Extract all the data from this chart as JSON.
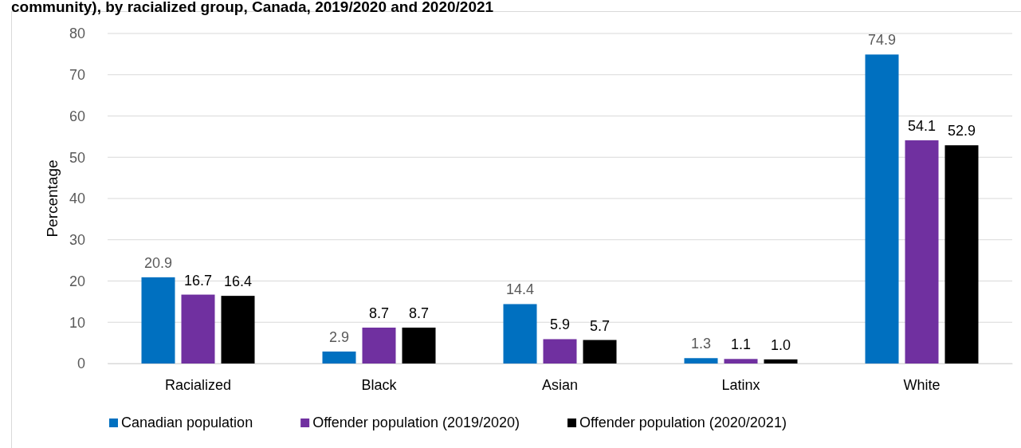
{
  "chart_data": {
    "type": "bar",
    "title": "community), by racialized group, Canada, 2019/2020 and 2020/2021",
    "ylabel": "Percentage",
    "categories": [
      "Racialized",
      "Black",
      "Asian",
      "Latinx",
      "White"
    ],
    "series": [
      {
        "name": "Canadian population",
        "color": "#0070c0",
        "values": [
          20.9,
          2.9,
          14.4,
          1.3,
          74.9
        ],
        "value_labels": [
          "20.9",
          "2.9",
          "14.4",
          "1.3",
          "74.9"
        ]
      },
      {
        "name": "Offender population (2019/2020)",
        "color": "#7030a0",
        "values": [
          16.7,
          8.7,
          5.9,
          1.1,
          54.1
        ],
        "value_labels": [
          "16.7",
          "8.7",
          "5.9",
          "1.1",
          "54.1"
        ]
      },
      {
        "name": "Offender population (2020/2021)",
        "color": "#000000",
        "values": [
          16.4,
          8.7,
          5.7,
          1.0,
          52.9
        ],
        "value_labels": [
          "16.4",
          "8.7",
          "5.7",
          "1.0",
          "52.9"
        ]
      }
    ],
    "ylim": [
      0,
      80
    ],
    "yticks": [
      0,
      10,
      20,
      30,
      40,
      50,
      60,
      70,
      80
    ],
    "grid": "y",
    "legend": "bottom"
  }
}
